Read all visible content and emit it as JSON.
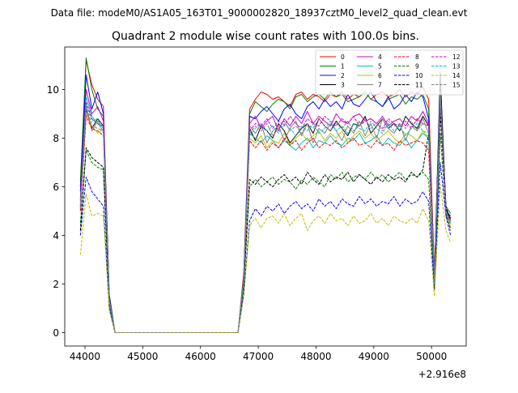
{
  "chart_data": {
    "type": "line",
    "suptitle": "Data file: modeM0/AS1A05_163T01_9000002820_18937cztM0_level2_quad_clean.evt",
    "title": "Quadrant 2 module wise count rates with 100.0s bins.",
    "xlabel": "",
    "ylabel": "",
    "x_offset_label": "+2.916e8",
    "xlim": [
      43650,
      50600
    ],
    "ylim": [
      -0.55,
      11.75
    ],
    "xticks": [
      44000,
      45000,
      46000,
      47000,
      48000,
      49000,
      50000
    ],
    "xtick_labels": [
      "44000",
      "45000",
      "46000",
      "47000",
      "48000",
      "49000",
      "50000"
    ],
    "yticks": [
      0,
      2,
      4,
      6,
      8,
      10
    ],
    "ytick_labels": [
      "0",
      "2",
      "4",
      "6",
      "8",
      "10"
    ],
    "grid": false,
    "legend_position": "top-right",
    "gap": [
      44650,
      46650
    ],
    "segment1_x": [
      43920,
      44020,
      44120,
      44220,
      44320,
      44420,
      44520,
      44620
    ],
    "segment2_x": [
      46650,
      46750,
      46850,
      46950,
      47050,
      47150,
      47250,
      47350,
      47450,
      47550,
      47650,
      47750,
      47850,
      47950,
      48050,
      48150,
      48250,
      48350,
      48450,
      48550,
      48650,
      48750,
      48850,
      48950,
      49050,
      49150,
      49250,
      49350,
      49450,
      49550,
      49650,
      49750,
      49850,
      49950,
      50050,
      50150,
      50250,
      50330
    ],
    "series": [
      {
        "name": "0",
        "color": "#ff0000",
        "dash": "solid",
        "seg1": [
          6.0,
          11.2,
          10.2,
          9.6,
          9.3,
          1.5,
          0.0,
          0.0
        ],
        "seg2": [
          0.0,
          2.5,
          9.2,
          9.6,
          9.9,
          9.8,
          9.6,
          9.7,
          9.5,
          9.3,
          9.8,
          9.9,
          9.6,
          9.8,
          9.7,
          9.5,
          9.8,
          9.7,
          9.9,
          9.6,
          9.8,
          9.7,
          9.9,
          9.6,
          9.8,
          9.9,
          9.7,
          9.8,
          10.0,
          9.7,
          9.9,
          9.8,
          10.1,
          9.6,
          2.5,
          10.2,
          5.0,
          4.8
        ]
      },
      {
        "name": "1",
        "color": "#008000",
        "dash": "solid",
        "seg1": [
          6.2,
          11.3,
          10.0,
          9.2,
          8.9,
          1.6,
          0.0,
          0.0
        ],
        "seg2": [
          0.0,
          2.4,
          9.0,
          9.5,
          9.3,
          9.1,
          9.4,
          9.6,
          9.5,
          9.2,
          9.7,
          9.8,
          9.5,
          9.7,
          9.8,
          9.6,
          9.9,
          9.7,
          9.8,
          9.5,
          9.6,
          9.7,
          9.9,
          9.6,
          9.5,
          9.3,
          9.6,
          9.7,
          9.8,
          9.4,
          9.7,
          9.6,
          9.8,
          9.2,
          2.3,
          10.0,
          5.2,
          4.9
        ]
      },
      {
        "name": "2",
        "color": "#0000ff",
        "dash": "solid",
        "seg1": [
          5.8,
          10.6,
          9.2,
          9.9,
          9.0,
          1.5,
          0.0,
          0.0
        ],
        "seg2": [
          0.0,
          2.3,
          8.9,
          8.8,
          9.1,
          9.3,
          9.0,
          8.7,
          9.2,
          9.4,
          9.0,
          8.8,
          9.3,
          9.5,
          9.2,
          9.6,
          9.3,
          9.5,
          9.2,
          9.8,
          9.4,
          9.3,
          9.6,
          9.9,
          9.5,
          9.3,
          9.7,
          9.2,
          9.4,
          9.8,
          9.5,
          9.9,
          9.7,
          8.8,
          2.2,
          10.7,
          5.0,
          4.5
        ]
      },
      {
        "name": "3",
        "color": "#000000",
        "dash": "solid",
        "seg1": [
          5.5,
          9.2,
          8.4,
          8.8,
          8.5,
          1.4,
          0.0,
          0.0
        ],
        "seg2": [
          0.0,
          2.2,
          8.4,
          7.9,
          8.5,
          8.3,
          8.0,
          8.6,
          8.3,
          7.8,
          8.1,
          8.4,
          8.6,
          8.2,
          8.8,
          8.5,
          8.3,
          8.7,
          8.4,
          8.1,
          8.6,
          8.5,
          8.9,
          8.2,
          8.5,
          8.8,
          8.4,
          8.6,
          8.3,
          8.9,
          8.6,
          8.4,
          8.9,
          8.5,
          2.1,
          10.5,
          5.1,
          4.7
        ]
      },
      {
        "name": "4",
        "color": "#cc00cc",
        "dash": "solid",
        "seg1": [
          5.4,
          10.0,
          9.0,
          9.3,
          8.7,
          1.4,
          0.0,
          0.0
        ],
        "seg2": [
          0.0,
          2.3,
          8.6,
          8.9,
          8.4,
          8.7,
          8.9,
          8.3,
          8.8,
          8.5,
          8.9,
          8.6,
          9.1,
          8.6,
          8.9,
          8.7,
          8.5,
          9.0,
          8.7,
          8.6,
          8.9,
          9.0,
          8.7,
          8.8,
          8.6,
          8.9,
          8.5,
          8.7,
          8.8,
          8.5,
          8.9,
          8.7,
          9.1,
          8.6,
          2.2,
          9.8,
          5.0,
          4.6
        ]
      },
      {
        "name": "5",
        "color": "#00bfbf",
        "dash": "solid",
        "seg1": [
          5.2,
          9.7,
          8.9,
          8.6,
          8.3,
          1.3,
          0.0,
          0.0
        ],
        "seg2": [
          0.0,
          2.2,
          8.2,
          8.0,
          7.8,
          8.1,
          7.9,
          7.6,
          7.9,
          7.7,
          7.5,
          7.8,
          8.0,
          7.6,
          7.9,
          7.8,
          8.1,
          7.8,
          7.7,
          8.0,
          7.9,
          8.2,
          7.8,
          7.9,
          8.1,
          7.7,
          8.0,
          7.8,
          7.7,
          8.0,
          7.6,
          7.9,
          8.2,
          8.0,
          2.1,
          9.6,
          5.0,
          4.5
        ]
      },
      {
        "name": "6",
        "color": "#bfbf00",
        "dash": "solid",
        "seg1": [
          5.0,
          9.0,
          8.5,
          8.2,
          8.4,
          1.3,
          0.0,
          0.0
        ],
        "seg2": [
          0.0,
          2.1,
          8.0,
          7.8,
          8.1,
          7.6,
          7.9,
          7.8,
          8.2,
          7.7,
          8.0,
          8.2,
          7.9,
          8.1,
          8.3,
          7.9,
          8.2,
          8.0,
          8.3,
          7.8,
          8.1,
          8.3,
          8.0,
          8.2,
          7.9,
          8.1,
          8.3,
          8.0,
          7.8,
          8.2,
          8.1,
          7.9,
          8.3,
          8.0,
          2.0,
          9.4,
          4.9,
          4.4
        ]
      },
      {
        "name": "7",
        "color": "#808080",
        "dash": "solid",
        "seg1": [
          5.1,
          9.3,
          8.3,
          8.7,
          8.4,
          1.3,
          0.0,
          0.0
        ],
        "seg2": [
          0.0,
          2.2,
          8.5,
          8.2,
          8.6,
          7.8,
          8.3,
          8.5,
          7.9,
          8.4,
          8.7,
          8.1,
          8.6,
          7.8,
          8.4,
          8.2,
          8.6,
          8.3,
          7.9,
          8.5,
          8.2,
          8.7,
          8.1,
          8.6,
          8.0,
          8.8,
          8.4,
          8.2,
          8.6,
          7.9,
          8.5,
          8.3,
          8.8,
          8.2,
          2.0,
          9.9,
          4.9,
          4.5
        ]
      },
      {
        "name": "8",
        "color": "#ff0000",
        "dash": "dashed",
        "seg1": [
          5.0,
          8.9,
          8.4,
          8.3,
          8.1,
          1.3,
          0.0,
          0.0
        ],
        "seg2": [
          0.0,
          2.1,
          7.9,
          7.6,
          7.9,
          7.5,
          7.8,
          7.6,
          8.0,
          7.7,
          7.9,
          7.5,
          7.8,
          8.0,
          7.6,
          7.8,
          7.7,
          7.9,
          7.6,
          7.8,
          8.0,
          7.7,
          7.8,
          7.6,
          7.9,
          7.7,
          7.8,
          7.5,
          7.9,
          7.7,
          7.8,
          7.9,
          7.8,
          7.5,
          2.0,
          9.3,
          4.8,
          4.3
        ]
      },
      {
        "name": "9",
        "color": "#008000",
        "dash": "dashed",
        "seg1": [
          4.5,
          7.5,
          7.0,
          6.8,
          6.7,
          1.2,
          0.0,
          0.0
        ],
        "seg2": [
          0.0,
          1.9,
          6.0,
          6.3,
          6.0,
          6.2,
          6.4,
          6.1,
          6.3,
          6.2,
          5.9,
          6.3,
          6.1,
          6.4,
          6.2,
          6.0,
          6.5,
          6.3,
          6.6,
          6.2,
          6.4,
          6.5,
          6.3,
          6.6,
          6.3,
          6.5,
          6.2,
          6.4,
          6.6,
          6.3,
          6.5,
          6.4,
          6.6,
          6.3,
          1.8,
          8.2,
          4.9,
          4.2
        ]
      },
      {
        "name": "10",
        "color": "#0000ff",
        "dash": "dashed",
        "seg1": [
          4.0,
          6.4,
          5.8,
          5.5,
          5.2,
          1.0,
          0.0,
          0.0
        ],
        "seg2": [
          0.0,
          1.6,
          4.6,
          5.1,
          4.8,
          5.2,
          5.0,
          5.3,
          4.9,
          5.2,
          5.4,
          5.1,
          5.3,
          5.0,
          5.5,
          5.2,
          5.4,
          5.1,
          5.5,
          5.3,
          5.2,
          5.6,
          5.3,
          5.5,
          5.2,
          5.4,
          5.3,
          5.6,
          5.2,
          5.5,
          5.3,
          5.4,
          5.8,
          5.4,
          1.7,
          7.0,
          4.8,
          4.0
        ]
      },
      {
        "name": "11",
        "color": "#000000",
        "dash": "dashed",
        "seg1": [
          4.2,
          7.6,
          7.2,
          7.0,
          6.8,
          1.2,
          0.0,
          0.0
        ],
        "seg2": [
          0.0,
          2.0,
          6.3,
          6.1,
          6.4,
          6.2,
          6.0,
          6.3,
          6.5,
          6.2,
          6.4,
          6.1,
          6.6,
          6.3,
          6.1,
          6.5,
          6.2,
          6.4,
          6.3,
          6.6,
          6.2,
          6.5,
          6.3,
          6.1,
          6.4,
          6.2,
          6.5,
          6.3,
          6.4,
          6.2,
          6.6,
          6.4,
          6.7,
          8.2,
          1.8,
          9.0,
          5.2,
          4.6
        ]
      },
      {
        "name": "12",
        "color": "#cc00cc",
        "dash": "dashed",
        "seg1": [
          5.2,
          9.5,
          8.8,
          8.6,
          8.5,
          1.4,
          0.0,
          0.0
        ],
        "seg2": [
          0.0,
          2.3,
          8.3,
          8.6,
          8.5,
          8.8,
          8.4,
          8.7,
          8.5,
          8.9,
          8.6,
          8.4,
          8.8,
          8.6,
          8.5,
          8.9,
          8.7,
          8.5,
          8.8,
          8.6,
          8.9,
          8.5,
          8.7,
          8.8,
          8.6,
          8.4,
          8.8,
          8.6,
          8.5,
          8.7,
          8.4,
          8.8,
          8.6,
          8.5,
          2.1,
          9.5,
          5.0,
          4.6
        ]
      },
      {
        "name": "13",
        "color": "#00bfbf",
        "dash": "dashed",
        "seg1": [
          5.3,
          9.4,
          8.7,
          8.8,
          8.2,
          1.3,
          0.0,
          0.0
        ],
        "seg2": [
          0.0,
          2.2,
          8.1,
          8.4,
          8.6,
          8.3,
          8.5,
          8.2,
          8.6,
          8.4,
          8.1,
          8.5,
          8.3,
          8.6,
          8.2,
          8.4,
          8.7,
          8.3,
          8.5,
          8.2,
          8.6,
          8.4,
          8.3,
          8.7,
          8.4,
          8.2,
          8.6,
          8.3,
          8.5,
          8.1,
          8.4,
          8.6,
          8.3,
          8.2,
          2.0,
          9.7,
          5.0,
          4.5
        ]
      },
      {
        "name": "14",
        "color": "#bfbf00",
        "dash": "dashed",
        "seg1": [
          3.2,
          5.7,
          4.8,
          4.9,
          4.8,
          0.9,
          0.0,
          0.0
        ],
        "seg2": [
          0.0,
          1.5,
          4.4,
          4.7,
          4.3,
          4.7,
          4.8,
          4.5,
          4.9,
          4.4,
          4.7,
          4.9,
          4.2,
          4.6,
          4.8,
          4.5,
          4.9,
          4.6,
          4.7,
          4.4,
          4.8,
          4.5,
          4.6,
          4.9,
          4.5,
          4.7,
          4.4,
          4.8,
          4.6,
          4.5,
          4.7,
          4.5,
          5.1,
          4.6,
          1.5,
          6.1,
          4.2,
          3.7
        ]
      },
      {
        "name": "15",
        "color": "#808080",
        "dash": "dashed",
        "seg1": [
          5.1,
          9.3,
          8.5,
          8.4,
          8.3,
          1.3,
          0.0,
          0.0
        ],
        "seg2": [
          0.0,
          2.2,
          8.2,
          8.5,
          8.3,
          8.6,
          8.1,
          8.4,
          8.7,
          8.3,
          8.5,
          8.2,
          8.6,
          8.4,
          8.8,
          8.5,
          8.3,
          8.6,
          8.4,
          8.7,
          8.3,
          8.5,
          8.8,
          8.4,
          8.6,
          8.3,
          8.7,
          8.5,
          8.6,
          8.4,
          8.7,
          8.3,
          8.6,
          8.5,
          2.1,
          9.9,
          4.9,
          4.6
        ]
      }
    ]
  }
}
